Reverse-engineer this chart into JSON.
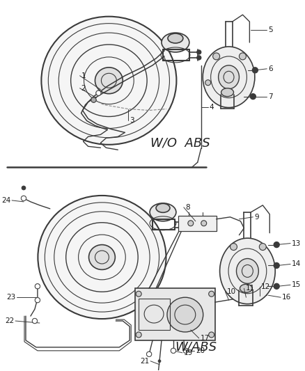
{
  "bg_color": "#ffffff",
  "line_color": "#3a3a3a",
  "text_color": "#1a1a1a",
  "fig_width": 4.38,
  "fig_height": 5.33,
  "dpi": 100,
  "wo_abs_label": "W/O  ABS",
  "w_abs_label": "W/ABS",
  "gray_line": "#888888",
  "light_gray": "#cccccc",
  "mid_gray": "#999999",
  "dark_gray": "#444444"
}
